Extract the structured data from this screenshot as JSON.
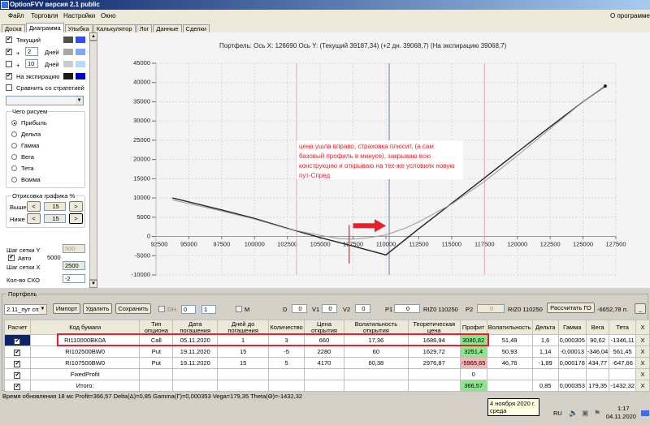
{
  "window": {
    "title": "OptionFVV версия 2.1 public"
  },
  "menu": [
    "Файл",
    "Торговля",
    "Настройки",
    "Окно"
  ],
  "menu_right": "О программе",
  "tabs": [
    "Доска",
    "Диаграмма",
    "Улыбка",
    "Калькулятор",
    "Лог",
    "Данные",
    "Сделки"
  ],
  "active_tab": "Диаграмма",
  "left": {
    "current": {
      "label": "Текущий",
      "checked": true,
      "colors": [
        "#505050",
        "#2b4cff"
      ]
    },
    "plus1": {
      "sign": "+",
      "value": "2",
      "unit": "Дней",
      "checked": true,
      "colors": [
        "#a8a8a8",
        "#7aa8ff"
      ]
    },
    "plus2": {
      "sign": "+",
      "value": "10",
      "unit": "Дней",
      "checked": false,
      "colors": [
        "#cccccc",
        "#b4dcff"
      ]
    },
    "expiry": {
      "label": "На экспирацию",
      "checked": true,
      "colors": [
        "#1a1a1a",
        "#0000cc"
      ]
    },
    "compare": {
      "label": "Сравнить со стратегией",
      "checked": false
    },
    "what_group": "Чего рисуем",
    "what": [
      "Прибыль",
      "Дельта",
      "Гамма",
      "Вега",
      "Тета",
      "Вомма"
    ],
    "what_selected": "Прибыль",
    "draw_group": "Отрисовка графика %",
    "above_label": "Выше",
    "above": "15",
    "below_label": "Ниже",
    "below": "15",
    "grid_y_label": "Шаг сетки Y",
    "grid_y": "500",
    "auto_label": "Авто",
    "auto_checked": true,
    "auto_value": "5000",
    "grid_x_label": "Шаг сетки X",
    "grid_x": "2500",
    "sko_label": "Кол-во СКО",
    "sko": "-2"
  },
  "chart": {
    "title": "Портфель:  Ось X:  126690  Ось Y:   (Текущий 39187,34)  (+2 дн. 39068,7)  (На экспирацию 39068,7)",
    "note": "цена ушла вправо, страховка плюсит, (а сам базовый профиль в минусе), закрываю всю конструкцию и открываю на тех-же условиях новую пут-Спред"
  },
  "chart_data": {
    "type": "line",
    "xlim": [
      92500,
      127500
    ],
    "ylim": [
      -10000,
      45000
    ],
    "xticks": [
      "92500",
      "95000",
      "97500",
      "100000",
      "102500",
      "105000",
      "107500",
      "110000",
      "112500",
      "115000",
      "117500",
      "120000",
      "122500",
      "125000",
      "127500"
    ],
    "yticks": [
      "45000",
      "40000",
      "35000",
      "30000",
      "25000",
      "20000",
      "15000",
      "10000",
      "5000",
      "0",
      "-5000",
      "-10000"
    ],
    "grid": true,
    "series": [
      {
        "color": "#222222",
        "x": [
          93750,
          97500,
          100000,
          102500,
          105000,
          107500,
          110000,
          112500,
          115000,
          117500,
          120000,
          122500,
          125000,
          126690
        ],
        "y": [
          10000,
          6900,
          4700,
          2100,
          -300,
          -2500,
          -4800,
          2000,
          8600,
          15200,
          21900,
          28500,
          35000,
          39068.7
        ]
      },
      {
        "color": "#999999",
        "x": [
          93750,
          97500,
          100000,
          102500,
          105000,
          106500,
          107500,
          108500,
          110000,
          111500,
          112500,
          115000,
          117500,
          120000,
          122500,
          125000,
          126690
        ],
        "y": [
          9500,
          6600,
          4500,
          2000,
          300,
          -600,
          -700,
          -400,
          400,
          2200,
          3800,
          8400,
          14300,
          21000,
          28000,
          35000,
          39187.34
        ]
      }
    ],
    "vlines": [
      {
        "x": 103200,
        "color": "#f0b0b0"
      },
      {
        "x": 110250,
        "color": "#8090b0"
      },
      {
        "x": 117500,
        "color": "#f0b0c0"
      }
    ],
    "marker_line": {
      "x": 107200,
      "y": [
        3000,
        -7000
      ],
      "color": "#e8202a"
    },
    "arrow": {
      "x": [
        107500,
        110000
      ],
      "y": 2800,
      "color": "#e8202a"
    },
    "endpoint": {
      "x": 126690,
      "y": 39068.7
    }
  },
  "portfolio": {
    "group": "Портфель",
    "combo": "2.11_пут спре",
    "import": "Импорт",
    "delete": "Удалить",
    "save": "Сохранить",
    "dh": "DH",
    "dh_spin1": "0",
    "dh_spin2": "1",
    "m": "M",
    "d_label": "D",
    "d": "0",
    "v1_label": "V1",
    "v1": "0",
    "v2_label": "V2",
    "v2": "0",
    "p1_label": "P1",
    "p1": "0",
    "p1_sec": "RIZ0 110250",
    "p2_label": "P2",
    "p2": "0",
    "p2_sec": "RIZ0 110250",
    "calc_go": "Рассчитать ГО",
    "go_value": "-6652,78 п.",
    "min": "_"
  },
  "table": {
    "headers": [
      "Расчет",
      "Код бумаги",
      "Тип опциона",
      "Дата погашения",
      "Дней до погашения",
      "Количество",
      "Цена открытия",
      "Волатильность открытия",
      "Теоретическая цена",
      "Профит",
      "Волатильность",
      "Дельта",
      "Гамма",
      "Вега",
      "Тета",
      "X"
    ],
    "rows": [
      {
        "calc": true,
        "cells": [
          "RI110000BK0A",
          "Call",
          "05.11.2020",
          "1",
          "3",
          "660",
          "17,36",
          "1686,94",
          "3080,82",
          "51,49",
          "1,6",
          "0,000305",
          "90,62",
          "-1346,11"
        ],
        "profit": "green"
      },
      {
        "calc": true,
        "cells": [
          "RI102500BW0",
          "Put",
          "19.11.2020",
          "15",
          "-5",
          "2280",
          "60",
          "1629,72",
          "3251,4",
          "50,93",
          "1,14",
          "-0,00013",
          "-346,04",
          "561,45"
        ],
        "profit": "green"
      },
      {
        "calc": true,
        "cells": [
          "RI107500BW0",
          "Put",
          "19.11.2020",
          "15",
          "5",
          "4170",
          "60,38",
          "2976,87",
          "-5965,65",
          "46,76",
          "-1,89",
          "0,000178",
          "434,77",
          "-647,66"
        ],
        "profit": "pink"
      },
      {
        "calc": true,
        "cells": [
          "FixedProfit",
          "",
          "",
          "",
          "",
          "",
          "",
          "",
          "0",
          "",
          "",
          "",
          "",
          ""
        ],
        "profit": ""
      },
      {
        "calc": true,
        "cells": [
          "Итого:",
          "",
          "",
          "",
          "",
          "",
          "",
          "",
          "366,57",
          "",
          "0,85",
          "0,000353",
          "179,35",
          "-1432,32"
        ],
        "profit": "green"
      }
    ]
  },
  "status": "Время обновления 18 мс  Profit=366,57 Delta(Δ)=0,85 Gamma(Γ)=0,000353 Vega=179,35 Theta(Θ)=-1432,32",
  "tooltip": {
    "line1": "4 ноября 2020 г.",
    "line2": "среда"
  },
  "tray": {
    "lang": "RU",
    "time": "1:17",
    "date": "04.11.2020"
  }
}
